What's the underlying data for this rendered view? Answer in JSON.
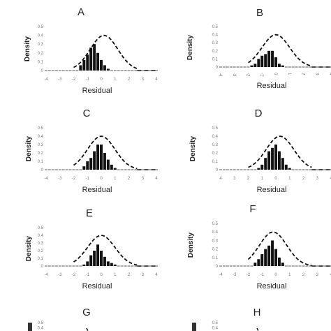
{
  "figure": {
    "panels": [
      {
        "letter": "A",
        "ylabel": "Density",
        "xlabel": "Residual",
        "yticks": [
          "0.5",
          "0.4",
          "0.3",
          "0.2",
          "0.1",
          "0"
        ],
        "xticks": [
          "-4",
          "-3",
          "-2",
          "-1",
          "0",
          "1",
          "2",
          "3",
          "4"
        ],
        "x_rotated": false
      },
      {
        "letter": "B",
        "ylabel": "Density",
        "xlabel": "Residual",
        "yticks": [
          "0.5",
          "0.4",
          "0.3",
          "0.2",
          "0.1",
          "0"
        ],
        "xticks": [
          "-4",
          "-3",
          "-2",
          "-1",
          "0",
          "1",
          "2",
          "3",
          "4"
        ],
        "x_rotated": true
      },
      {
        "letter": "C",
        "ylabel": "Density",
        "xlabel": "Residual",
        "yticks": [
          "0.5",
          "0.4",
          "0.3",
          "0.2",
          "0.1",
          "0"
        ],
        "xticks": [
          "-4",
          "-3",
          "-2",
          "-1",
          "0",
          "1",
          "2",
          "3",
          "4"
        ],
        "x_rotated": false
      },
      {
        "letter": "D",
        "ylabel": "Density",
        "xlabel": "Residual",
        "yticks": [
          "0.5",
          "0.4",
          "0.3",
          "0.2",
          "0.1",
          "0"
        ],
        "xticks": [
          "4",
          "3",
          "2",
          "1",
          "0",
          "1",
          "2",
          "3",
          "4"
        ],
        "x_rotated": false
      },
      {
        "letter": "E",
        "ylabel": "Density",
        "xlabel": "Residual",
        "yticks": [
          "0.5",
          "0.4",
          "0.3",
          "0.2",
          "0.1",
          "0"
        ],
        "xticks": [
          "-4",
          "-3",
          "-2",
          "-1",
          "0",
          "1",
          "2",
          "3",
          "4"
        ],
        "x_rotated": false
      },
      {
        "letter": "F",
        "ylabel": "Density",
        "xlabel": "Residual",
        "yticks": [
          "0.5",
          "0.4",
          "0.3",
          "0.2",
          "0.1",
          "0"
        ],
        "xticks": [
          "-4",
          "-3",
          "-2",
          "-1",
          "0",
          "1",
          "2",
          "3",
          "4"
        ],
        "x_rotated": false
      },
      {
        "letter": "G",
        "ylabel": "",
        "xlabel": "",
        "yticks": [
          "0.5",
          "0.4"
        ],
        "xticks": [],
        "x_rotated": false
      },
      {
        "letter": "H",
        "ylabel": "",
        "xlabel": "",
        "yticks": [
          "0.5",
          "0.4"
        ],
        "xticks": [],
        "x_rotated": false
      }
    ]
  },
  "chart_data": [
    {
      "type": "bar",
      "panel": "A",
      "xlabel": "Residual",
      "ylabel": "Density",
      "xlim": [
        -4,
        4
      ],
      "ylim": [
        0,
        0.5
      ],
      "series": [
        {
          "kind": "histogram",
          "x": [
            -4,
            -3.75,
            -3.5,
            -3.25,
            -3,
            -2.75,
            -2.5,
            -2.25,
            -2,
            -1.75,
            -1.5,
            -1.25,
            -1,
            -0.75,
            -0.5,
            -0.25,
            0,
            0.25,
            0.5,
            0.75,
            1,
            1.25,
            1.5,
            1.75,
            2,
            2.25,
            2.5,
            2.75,
            3,
            3.25,
            3.5,
            3.75,
            4
          ],
          "values": [
            0,
            0,
            0,
            0,
            0,
            0,
            0,
            0,
            0,
            0,
            0.06,
            0.12,
            0.18,
            0.26,
            0.3,
            0.2,
            0.12,
            0.06,
            0.02,
            0,
            0,
            0,
            0,
            0,
            0,
            0,
            0,
            0,
            0,
            0,
            0,
            0,
            0
          ]
        },
        {
          "kind": "normal-curve",
          "style": "dashed",
          "mean": 0.2,
          "sd": 1.0
        }
      ]
    },
    {
      "type": "bar",
      "panel": "B",
      "xlabel": "Residual",
      "ylabel": "Density",
      "xlim": [
        -4,
        4
      ],
      "ylim": [
        0,
        0.5
      ],
      "series": [
        {
          "kind": "histogram",
          "x": [
            -4,
            -3.75,
            -3.5,
            -3.25,
            -3,
            -2.75,
            -2.5,
            -2.25,
            -2,
            -1.75,
            -1.5,
            -1.25,
            -1,
            -0.75,
            -0.5,
            -0.25,
            0,
            0.25,
            0.5,
            0.75,
            1,
            1.25,
            1.5,
            1.75,
            2,
            2.25,
            2.5,
            2.75,
            3,
            3.25,
            3.5,
            3.75,
            4
          ],
          "values": [
            0,
            0,
            0,
            0,
            0,
            0,
            0,
            0,
            0,
            0.02,
            0.04,
            0.1,
            0.14,
            0.16,
            0.2,
            0.2,
            0.12,
            0.04,
            0.02,
            0,
            0,
            0,
            0,
            0,
            0,
            0,
            0,
            0,
            0,
            0,
            0,
            0,
            0
          ]
        },
        {
          "kind": "normal-curve",
          "style": "dashed",
          "mean": 0.0,
          "sd": 1.0
        }
      ]
    },
    {
      "type": "bar",
      "panel": "C",
      "xlabel": "Residual",
      "ylabel": "Density",
      "xlim": [
        -4,
        4
      ],
      "ylim": [
        0,
        0.5
      ],
      "series": [
        {
          "kind": "histogram",
          "x": [
            -4,
            -3.75,
            -3.5,
            -3.25,
            -3,
            -2.75,
            -2.5,
            -2.25,
            -2,
            -1.75,
            -1.5,
            -1.25,
            -1,
            -0.75,
            -0.5,
            -0.25,
            0,
            0.25,
            0.5,
            0.75,
            1,
            1.25,
            1.5,
            1.75,
            2,
            2.25,
            2.5,
            2.75,
            3,
            3.25,
            3.5,
            3.75,
            4
          ],
          "values": [
            0,
            0,
            0,
            0,
            0,
            0,
            0,
            0,
            0,
            0,
            0,
            0.04,
            0.1,
            0.14,
            0.22,
            0.3,
            0.3,
            0.2,
            0.12,
            0.06,
            0.02,
            0,
            0,
            0,
            0,
            0,
            0,
            0,
            0,
            0,
            0,
            0,
            0
          ]
        },
        {
          "kind": "normal-curve",
          "style": "dashed",
          "mean": 0.0,
          "sd": 1.0
        }
      ]
    },
    {
      "type": "bar",
      "panel": "D",
      "xlabel": "Residual",
      "ylabel": "Density",
      "xlim": [
        -4,
        4
      ],
      "ylim": [
        0,
        0.5
      ],
      "series": [
        {
          "kind": "histogram",
          "x": [
            -4,
            -3.75,
            -3.5,
            -3.25,
            -3,
            -2.75,
            -2.5,
            -2.25,
            -2,
            -1.75,
            -1.5,
            -1.25,
            -1,
            -0.75,
            -0.5,
            -0.25,
            0,
            0.25,
            0.5,
            0.75,
            1,
            1.25,
            1.5,
            1.75,
            2,
            2.25,
            2.5,
            2.75,
            3,
            3.25,
            3.5,
            3.75,
            4
          ],
          "values": [
            0,
            0,
            0,
            0,
            0,
            0,
            0,
            0,
            0,
            0,
            0,
            0.02,
            0.06,
            0.14,
            0.22,
            0.26,
            0.3,
            0.22,
            0.14,
            0.06,
            0.02,
            0,
            0,
            0,
            0,
            0,
            0,
            0,
            0,
            0,
            0,
            0,
            0
          ]
        },
        {
          "kind": "normal-curve",
          "style": "dashed",
          "mean": 0.3,
          "sd": 1.0
        }
      ]
    },
    {
      "type": "bar",
      "panel": "E",
      "xlabel": "Residual",
      "ylabel": "Density",
      "xlim": [
        -4,
        4
      ],
      "ylim": [
        0,
        0.5
      ],
      "series": [
        {
          "kind": "histogram",
          "x": [
            -4,
            -3.75,
            -3.5,
            -3.25,
            -3,
            -2.75,
            -2.5,
            -2.25,
            -2,
            -1.75,
            -1.5,
            -1.25,
            -1,
            -0.75,
            -0.5,
            -0.25,
            0,
            0.25,
            0.5,
            0.75,
            1,
            1.25,
            1.5,
            1.75,
            2,
            2.25,
            2.5,
            2.75,
            3,
            3.25,
            3.5,
            3.75,
            4
          ],
          "values": [
            0,
            0,
            0,
            0,
            0,
            0,
            0,
            0,
            0,
            0,
            0,
            0.02,
            0.06,
            0.14,
            0.2,
            0.28,
            0.2,
            0.12,
            0.06,
            0.04,
            0.02,
            0,
            0,
            0,
            0,
            0,
            0,
            0,
            0,
            0,
            0,
            0,
            0
          ]
        },
        {
          "kind": "normal-curve",
          "style": "dashed",
          "mean": 0.0,
          "sd": 1.0
        }
      ]
    },
    {
      "type": "bar",
      "panel": "F",
      "xlabel": "Residual",
      "ylabel": "Density",
      "xlim": [
        -4,
        4
      ],
      "ylim": [
        0,
        0.5
      ],
      "series": [
        {
          "kind": "histogram",
          "x": [
            -4,
            -3.75,
            -3.5,
            -3.25,
            -3,
            -2.75,
            -2.5,
            -2.25,
            -2,
            -1.75,
            -1.5,
            -1.25,
            -1,
            -0.75,
            -0.5,
            -0.25,
            0,
            0.25,
            0.5,
            0.75,
            1,
            1.25,
            1.5,
            1.75,
            2,
            2.25,
            2.5,
            2.75,
            3,
            3.25,
            3.5,
            3.75,
            4
          ],
          "values": [
            0,
            0,
            0,
            0,
            0,
            0,
            0,
            0,
            0,
            0,
            0.04,
            0.08,
            0.14,
            0.2,
            0.24,
            0.3,
            0.2,
            0.1,
            0.04,
            0,
            0,
            0,
            0,
            0,
            0,
            0,
            0,
            0,
            0,
            0,
            0,
            0,
            0
          ]
        },
        {
          "kind": "normal-curve",
          "style": "dashed",
          "mean": -0.2,
          "sd": 1.0
        }
      ]
    }
  ]
}
